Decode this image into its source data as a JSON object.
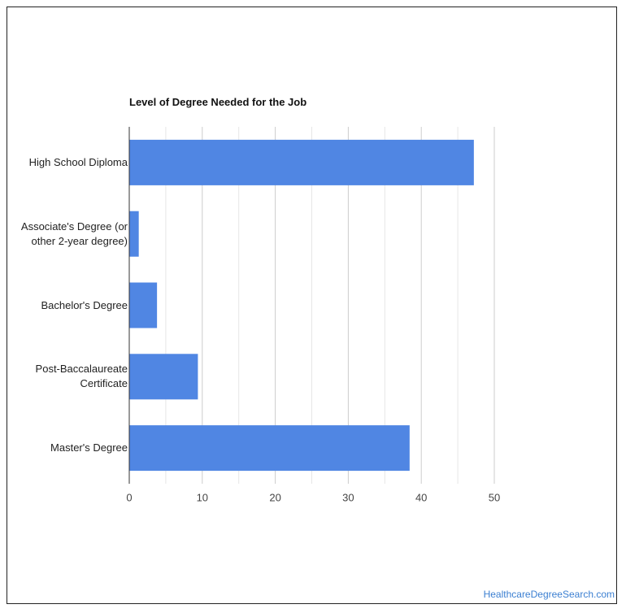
{
  "chart_data": {
    "type": "bar",
    "orientation": "horizontal",
    "title": "Level of Degree Needed for the Job",
    "categories": [
      "High School Diploma",
      "Associate's Degree (or other 2-year degree)",
      "Bachelor's Degree",
      "Post-Baccalaureate Certificate",
      "Master's Degree"
    ],
    "values": [
      47.2,
      1.3,
      3.8,
      9.4,
      38.4
    ],
    "color": "#5086e3",
    "xlim": [
      0,
      50
    ],
    "xticks": [
      0,
      10,
      20,
      30,
      40,
      50
    ],
    "grid": true
  },
  "footer": {
    "source": "HealthcareDegreeSearch.com"
  }
}
